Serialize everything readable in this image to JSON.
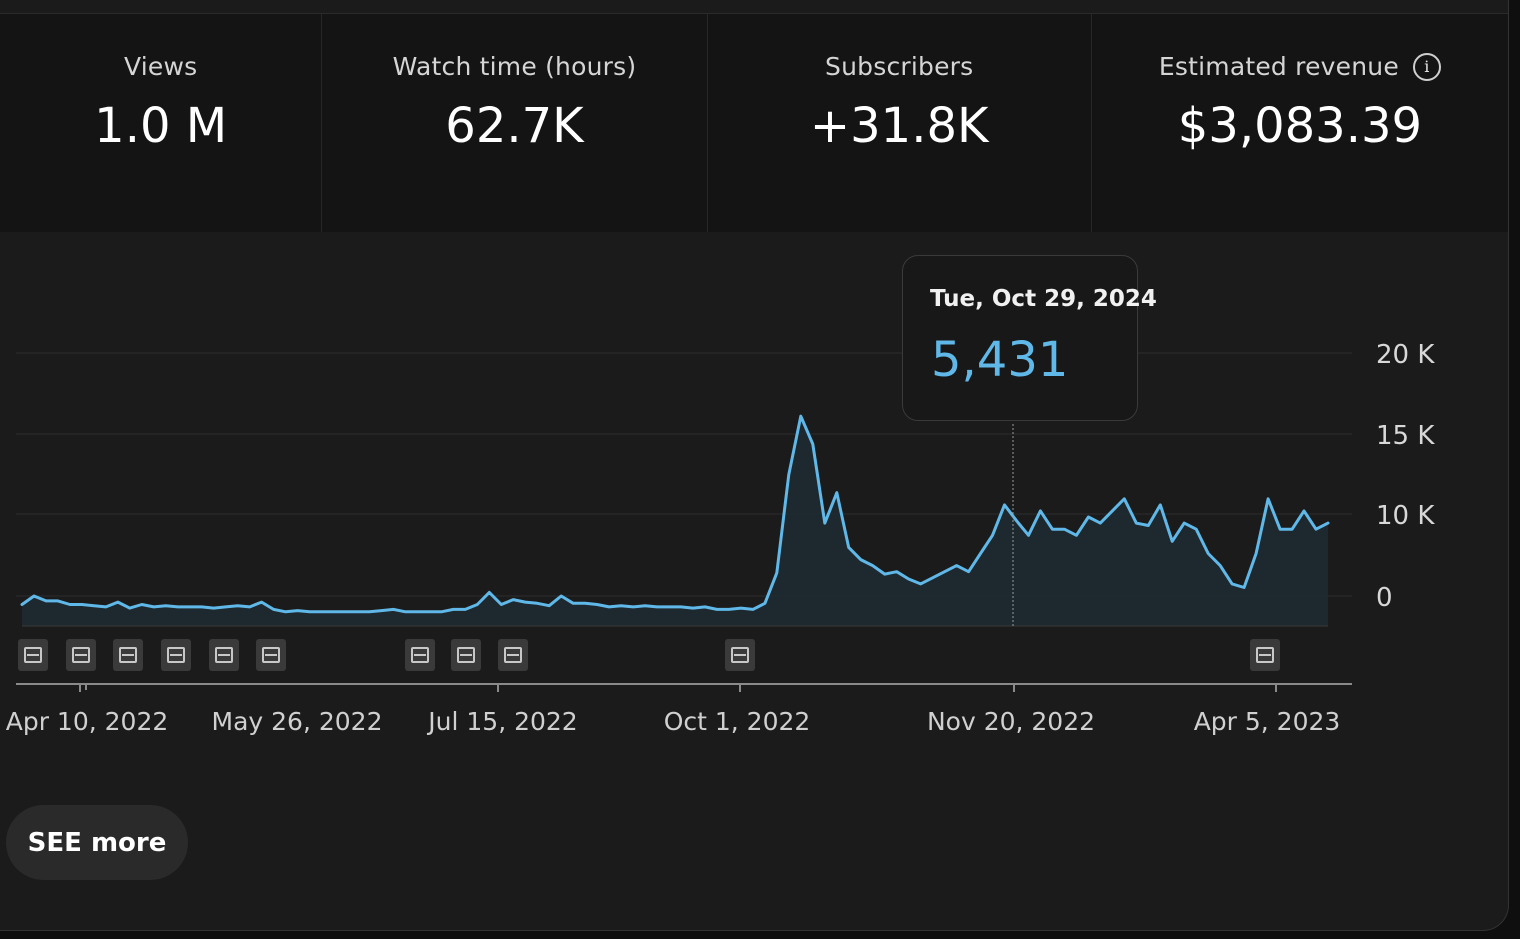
{
  "metrics": [
    {
      "label": "Views",
      "value": "1.0 M"
    },
    {
      "label": "Watch time (hours)",
      "value": "62.7K"
    },
    {
      "label": "Subscribers",
      "value": "+31.8K"
    },
    {
      "label": "Estimated revenue",
      "value": "$3,083.39",
      "info": "i"
    }
  ],
  "tooltip": {
    "date": "Tue, Oct 29, 2024",
    "value": "5,431"
  },
  "see_more_label": "SEE more",
  "colors": {
    "line": "#5fb8e8",
    "background": "#1b1b1b",
    "metrics_bg": "#141414"
  },
  "chart_data": {
    "type": "area",
    "y_ticks": [
      "20 K",
      "15 K",
      "10 K",
      "0"
    ],
    "x_ticks": [
      "Apr 10, 2022",
      "May 26, 2022",
      "Jul 15, 2022",
      "Oct 1, 2022",
      "Nov 20, 2022",
      "Apr 5, 2023"
    ],
    "marker_count": 12,
    "legend": "none",
    "grid": true,
    "values": [
      -700,
      0,
      -400,
      -400,
      -700,
      -700,
      -800,
      -900,
      -500,
      -1000,
      -700,
      -900,
      -800,
      -900,
      -900,
      -900,
      -1000,
      -900,
      -800,
      -900,
      -500,
      -1100,
      -1300,
      -1200,
      -1300,
      -1300,
      -1300,
      -1300,
      -1300,
      -1300,
      -1200,
      -1100,
      -1300,
      -1300,
      -1300,
      -1300,
      -1100,
      -1100,
      -700,
      300,
      -700,
      -300,
      -500,
      -600,
      -800,
      0,
      -600,
      -600,
      -700,
      -900,
      -800,
      -900,
      -800,
      -900,
      -900,
      -900,
      -1000,
      -900,
      -1100,
      -1100,
      -1000,
      -1100,
      -600,
      1900,
      10000,
      14800,
      12500,
      6000,
      8500,
      4000,
      3000,
      2500,
      1800,
      2000,
      1400,
      1000,
      1500,
      2000,
      2500,
      2000,
      3500,
      5000,
      7500,
      6200,
      5000,
      7000,
      5500,
      5500,
      5000,
      6500,
      6000,
      7000,
      8000,
      6000,
      5800,
      7500,
      4500,
      6000,
      5500,
      3500,
      2500,
      1000,
      700,
      3500,
      8000,
      5500,
      5500,
      7000,
      5500,
      6000
    ],
    "note_peak": 14800
  }
}
